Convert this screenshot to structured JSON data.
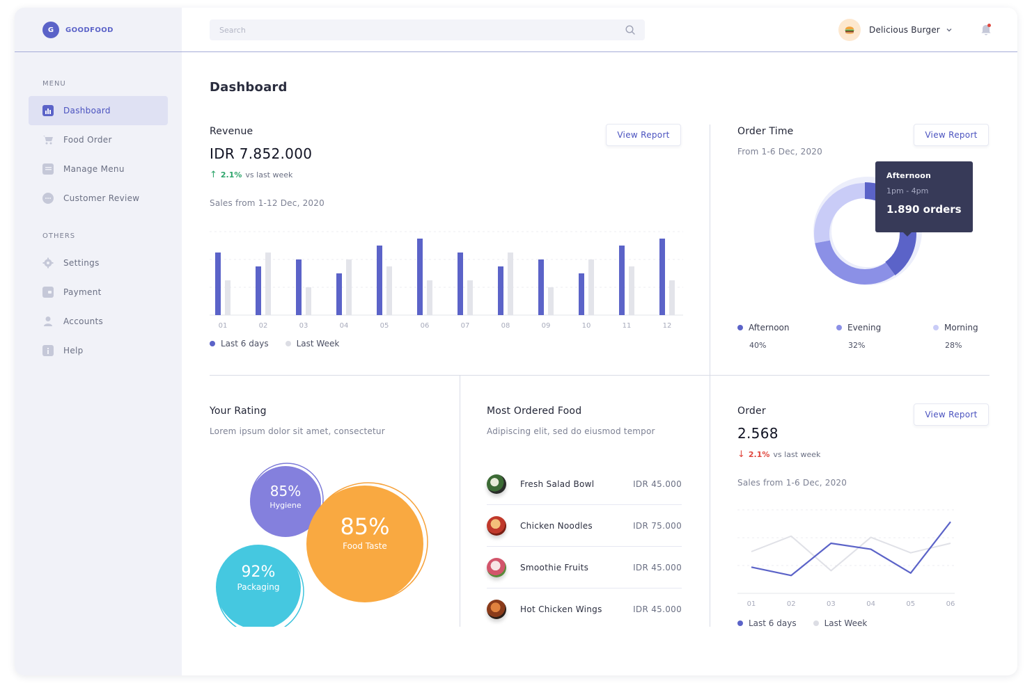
{
  "brand": {
    "logo_letter": "G",
    "name": "GOODFOOD"
  },
  "sidebar": {
    "menu_label": "MENU",
    "others_label": "OTHERS",
    "menu_items": [
      {
        "label": "Dashboard",
        "icon": "chart-icon",
        "active": true
      },
      {
        "label": "Food Order",
        "icon": "cart-icon"
      },
      {
        "label": "Manage Menu",
        "icon": "menu-list-icon"
      },
      {
        "label": "Customer Review",
        "icon": "chat-icon"
      }
    ],
    "other_items": [
      {
        "label": "Settings",
        "icon": "gear-icon"
      },
      {
        "label": "Payment",
        "icon": "wallet-icon"
      },
      {
        "label": "Accounts",
        "icon": "user-icon"
      },
      {
        "label": "Help",
        "icon": "info-icon"
      }
    ]
  },
  "header": {
    "search_placeholder": "Search",
    "profile_name": "Delicious Burger",
    "avatar_icon": "burger-icon",
    "notification_color": "#e0473e"
  },
  "page": {
    "title": "Dashboard"
  },
  "revenue": {
    "title": "Revenue",
    "button": "View Report",
    "value": "IDR 7.852.000",
    "delta_pct": "2.1%",
    "delta_text": "vs last week",
    "subtitle": "Sales from 1-12 Dec, 2020",
    "legend": {
      "current": "Last 6 days",
      "previous": "Last Week"
    }
  },
  "order_time": {
    "title": "Order Time",
    "subtitle": "From 1-6 Dec, 2020",
    "button": "View Report",
    "tooltip": {
      "title": "Afternoon",
      "time": "1pm - 4pm",
      "value": "1.890 orders"
    },
    "legend": [
      {
        "name": "Afternoon",
        "pct": "40%",
        "color": "#5b63c8"
      },
      {
        "name": "Evening",
        "pct": "32%",
        "color": "#8b90e6"
      },
      {
        "name": "Morning",
        "pct": "28%",
        "color": "#c9ccf7"
      }
    ]
  },
  "rating": {
    "title": "Your Rating",
    "subtitle": "Lorem ipsum dolor sit amet, consectetur",
    "bubbles": {
      "hygiene": {
        "pct": "85%",
        "label": "Hygiene"
      },
      "taste": {
        "pct": "85%",
        "label": "Food Taste"
      },
      "packaging": {
        "pct": "92%",
        "label": "Packaging"
      }
    }
  },
  "most_ordered": {
    "title": "Most Ordered Food",
    "subtitle": "Adipiscing elit, sed do eiusmod tempor",
    "items": [
      {
        "name": "Fresh Salad Bowl",
        "price": "IDR 45.000"
      },
      {
        "name": "Chicken Noodles",
        "price": "IDR 75.000"
      },
      {
        "name": "Smoothie Fruits",
        "price": "IDR 45.000"
      },
      {
        "name": "Hot Chicken Wings",
        "price": "IDR 45.000"
      }
    ]
  },
  "order": {
    "title": "Order",
    "button": "View Report",
    "value": "2.568",
    "delta_pct": "2.1%",
    "delta_text": "vs last week",
    "subtitle": "Sales from 1-6 Dec, 2020",
    "legend": {
      "current": "Last 6 days",
      "previous": "Last Week"
    }
  },
  "chart_data": [
    {
      "type": "bar",
      "categories": [
        "01",
        "02",
        "03",
        "04",
        "05",
        "06",
        "07",
        "08",
        "09",
        "10",
        "11",
        "12"
      ],
      "series": [
        {
          "name": "Last 6 days",
          "values": [
            90,
            70,
            80,
            60,
            100,
            110,
            90,
            70,
            80,
            60,
            100,
            110
          ],
          "color": "#5b63c8"
        },
        {
          "name": "Last Week",
          "values": [
            50,
            90,
            40,
            80,
            70,
            50,
            50,
            90,
            40,
            80,
            70,
            50
          ],
          "color": "#e3e4ea"
        }
      ],
      "ylim": [
        0,
        120
      ],
      "grid": true
    },
    {
      "type": "pie",
      "labels": [
        "Afternoon",
        "Evening",
        "Morning"
      ],
      "values": [
        40,
        32,
        28
      ],
      "colors": [
        "#5b63c8",
        "#8b90e6",
        "#c9ccf7"
      ]
    },
    {
      "type": "line",
      "categories": [
        "01",
        "02",
        "03",
        "04",
        "05",
        "06"
      ],
      "series": [
        {
          "name": "Last 6 days",
          "values": [
            22,
            15,
            42,
            37,
            17,
            60
          ],
          "color": "#5b63c8"
        },
        {
          "name": "Last Week",
          "values": [
            35,
            48,
            19,
            47,
            34,
            42
          ],
          "color": "#e0e1e7"
        }
      ],
      "ylim": [
        0,
        70
      ],
      "grid": true
    }
  ]
}
